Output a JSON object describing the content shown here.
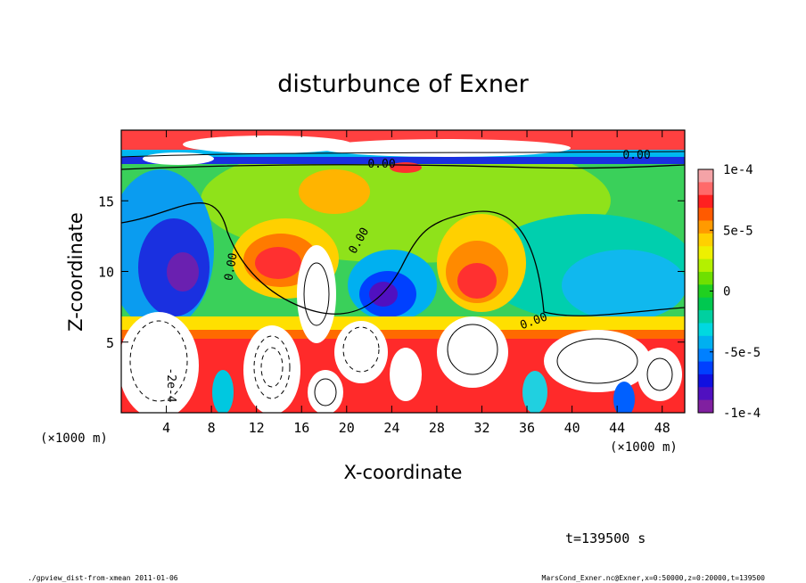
{
  "chart_data": {
    "type": "heatmap",
    "title": "disturbunce of Exner",
    "xlabel": "X-coordinate",
    "ylabel": "Z-coordinate",
    "x_unit": "(×1000 m)",
    "y_unit": "(×1000 m)",
    "xlim": [
      0,
      50
    ],
    "ylim": [
      0,
      20
    ],
    "x_ticks": [
      4,
      8,
      12,
      16,
      20,
      24,
      28,
      32,
      36,
      40,
      44,
      48
    ],
    "y_ticks": [
      5,
      10,
      15
    ],
    "colorbar": {
      "min": -0.0001,
      "max": 0.0001,
      "tick_labels": [
        "1e-4",
        "5e-5",
        "0",
        "-5e-5",
        "-1e-4"
      ],
      "tick_values": [
        0.0001,
        5e-05,
        0,
        -5e-05,
        -0.0001
      ],
      "colors": [
        "#f4a3a7",
        "#ff6a6a",
        "#ff2020",
        "#ff5a00",
        "#ff9a00",
        "#ffd000",
        "#eef000",
        "#b4f000",
        "#6ee000",
        "#20d020",
        "#00c850",
        "#00d0a0",
        "#00d8e0",
        "#00b0f0",
        "#0080ff",
        "#0040ff",
        "#1010e0",
        "#5010c0",
        "#8020a0"
      ]
    },
    "contour_labels": [
      "0.00",
      "0.00",
      "0.00",
      "0.00",
      "0.00",
      "-2e-4"
    ],
    "annotation": "t=139500 s"
  },
  "footer": {
    "left": "./gpview_dist-from-xmean  2011-01-06",
    "right": "MarsCond_Exner.nc@Exner,x=0:50000,z=0:20000,t=139500"
  }
}
